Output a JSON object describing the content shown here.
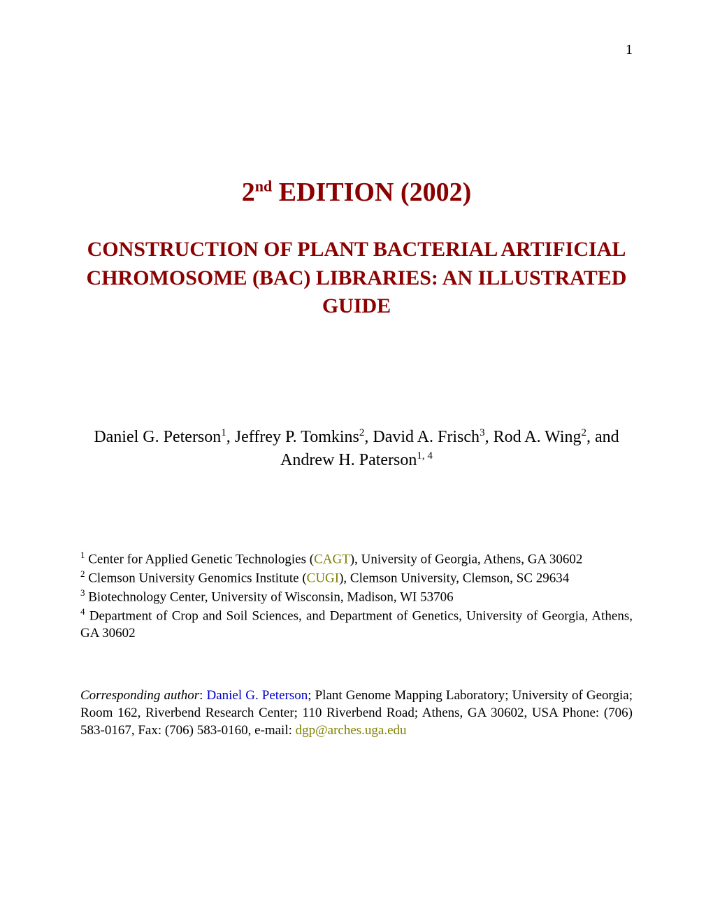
{
  "page_number": "1",
  "edition": {
    "prefix": "2",
    "superscript": "nd",
    "suffix": " EDITION (2002)"
  },
  "title": "CONSTRUCTION OF PLANT BACTERIAL ARTIFICIAL CHROMOSOME (BAC) LIBRARIES: AN ILLUSTRATED GUIDE",
  "authors_line1_a": "Daniel G. Peterson",
  "authors_sup1": "1",
  "authors_line1_b": ", Jeffrey P. Tomkins",
  "authors_sup2": "2",
  "authors_line1_c": ", David A. Frisch",
  "authors_sup3": "3",
  "authors_line1_d": ", Rod A. Wing",
  "authors_sup4": "2",
  "authors_line1_e": ", and Andrew H. Paterson",
  "authors_sup5": "1, 4",
  "aff1_sup": "1",
  "aff1_a": " Center for Applied Genetic Technologies (",
  "aff1_link": "CAGT",
  "aff1_b": "), University of Georgia, Athens, GA 30602",
  "aff2_sup": "2",
  "aff2_a": " Clemson University Genomics Institute (",
  "aff2_link": "CUGI",
  "aff2_b": "), Clemson University, Clemson, SC 29634",
  "aff3_sup": "3",
  "aff3_text": " Biotechnology Center, University of Wisconsin, Madison, WI 53706",
  "aff4_sup": "4",
  "aff4_text": " Department of Crop and Soil Sciences, and Department of Genetics, University of Georgia, Athens, GA 30602",
  "corr_label": "Corresponding author",
  "corr_sep": ": ",
  "corr_name": "Daniel G. Peterson",
  "corr_rest": "; Plant Genome Mapping Laboratory; University of Georgia; Room 162, Riverbend Research Center; 110 Riverbend Road; Athens, GA 30602, USA Phone: (706) 583-0167, Fax: (706) 583-0160, e-mail: ",
  "corr_email": "dgp@arches.uga.edu",
  "colors": {
    "title_color": "#8b0000",
    "link_olive": "#808000",
    "link_blue": "#0000cc",
    "text_color": "#000000",
    "background": "#ffffff"
  },
  "typography": {
    "page_number_fontsize": 20,
    "edition_fontsize": 38,
    "title_fontsize": 30,
    "authors_fontsize": 24,
    "affiliations_fontsize": 19,
    "font_family": "Times New Roman"
  }
}
